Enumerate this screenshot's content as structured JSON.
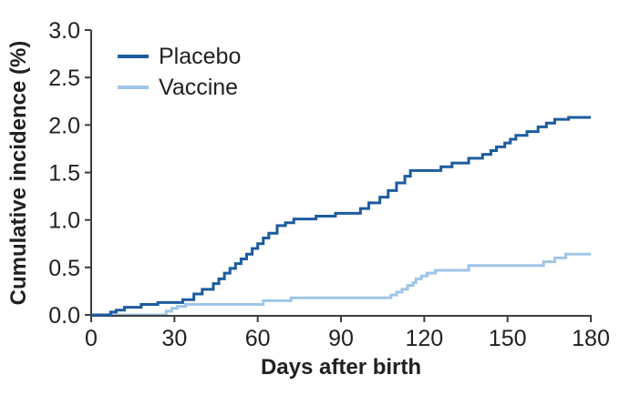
{
  "figure": {
    "background": "#ffffff",
    "axis_color": "#3d3d3d",
    "text_color": "#231f20"
  },
  "chart_data": {
    "type": "line",
    "subtype": "step-function-cumulative-incidence",
    "title": "",
    "xlabel": "Days after birth",
    "ylabel": "Cumulative incidence (%)",
    "xlim": [
      0,
      180
    ],
    "ylim": [
      0,
      3.0
    ],
    "x_ticks": [
      0,
      30,
      60,
      90,
      120,
      150,
      180
    ],
    "x_tick_labels": [
      "0",
      "30",
      "60",
      "90",
      "120",
      "150",
      "180"
    ],
    "y_ticks": [
      0,
      0.5,
      1.0,
      1.5,
      2.0,
      2.5,
      3.0
    ],
    "y_tick_labels": [
      "0.0",
      "0.5",
      "1.0",
      "1.5",
      "2.0",
      "2.5",
      "3.0"
    ],
    "grid": false,
    "legend_position": "top-left-inside",
    "series": [
      {
        "name": "Placebo",
        "color": "#1d5c9e",
        "final_value_pct": 2.08,
        "points": [
          [
            0,
            0
          ],
          [
            7,
            0.03
          ],
          [
            9,
            0.05
          ],
          [
            12,
            0.08
          ],
          [
            18,
            0.11
          ],
          [
            24,
            0.13
          ],
          [
            33,
            0.16
          ],
          [
            37,
            0.22
          ],
          [
            40,
            0.27
          ],
          [
            44,
            0.33
          ],
          [
            46,
            0.38
          ],
          [
            48,
            0.44
          ],
          [
            50,
            0.49
          ],
          [
            52,
            0.54
          ],
          [
            54,
            0.59
          ],
          [
            56,
            0.64
          ],
          [
            58,
            0.7
          ],
          [
            60,
            0.75
          ],
          [
            62,
            0.81
          ],
          [
            64,
            0.86
          ],
          [
            67,
            0.94
          ],
          [
            70,
            0.97
          ],
          [
            73,
            1.01
          ],
          [
            81,
            1.04
          ],
          [
            88,
            1.07
          ],
          [
            97,
            1.12
          ],
          [
            100,
            1.18
          ],
          [
            104,
            1.24
          ],
          [
            107,
            1.31
          ],
          [
            110,
            1.39
          ],
          [
            113,
            1.46
          ],
          [
            115,
            1.52
          ],
          [
            126,
            1.56
          ],
          [
            130,
            1.6
          ],
          [
            136,
            1.65
          ],
          [
            141,
            1.69
          ],
          [
            144,
            1.73
          ],
          [
            146,
            1.77
          ],
          [
            149,
            1.81
          ],
          [
            151,
            1.85
          ],
          [
            153,
            1.89
          ],
          [
            157,
            1.93
          ],
          [
            161,
            1.98
          ],
          [
            164,
            2.02
          ],
          [
            167,
            2.06
          ],
          [
            172,
            2.08
          ],
          [
            180,
            2.08
          ]
        ]
      },
      {
        "name": "Vaccine",
        "color": "#9fc5e8",
        "final_value_pct": 0.64,
        "points": [
          [
            0,
            0
          ],
          [
            27,
            0.04
          ],
          [
            29,
            0.07
          ],
          [
            31,
            0.09
          ],
          [
            34,
            0.11
          ],
          [
            62,
            0.15
          ],
          [
            72,
            0.18
          ],
          [
            108,
            0.21
          ],
          [
            110,
            0.24
          ],
          [
            112,
            0.27
          ],
          [
            114,
            0.31
          ],
          [
            116,
            0.34
          ],
          [
            117,
            0.38
          ],
          [
            119,
            0.41
          ],
          [
            121,
            0.44
          ],
          [
            124,
            0.47
          ],
          [
            136,
            0.52
          ],
          [
            163,
            0.56
          ],
          [
            167,
            0.6
          ],
          [
            171,
            0.64
          ],
          [
            180,
            0.64
          ]
        ]
      }
    ]
  }
}
